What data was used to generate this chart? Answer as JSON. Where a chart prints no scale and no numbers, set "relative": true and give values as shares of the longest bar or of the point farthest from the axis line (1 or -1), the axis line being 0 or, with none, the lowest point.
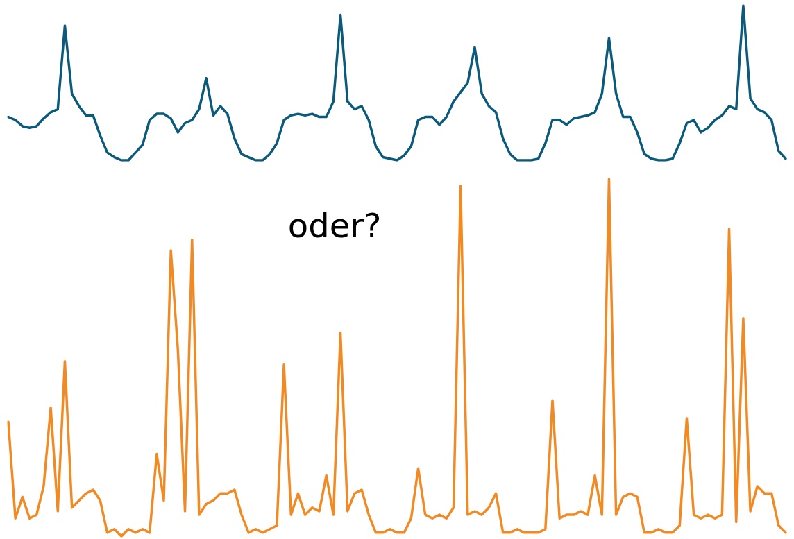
{
  "chart_data": [
    {
      "type": "line",
      "relative": true,
      "categories": [
        null,
        null,
        null,
        null,
        null,
        null,
        null,
        null,
        null,
        null,
        null,
        null,
        null,
        null,
        null,
        null,
        null,
        null,
        null,
        null,
        null,
        null,
        null,
        null,
        null,
        null,
        null,
        null,
        null,
        null,
        null,
        null,
        null,
        null,
        null,
        null,
        null,
        null,
        null,
        null,
        null,
        null,
        null,
        null,
        null,
        null,
        null,
        null,
        null,
        null,
        null,
        null,
        null,
        null,
        null,
        null,
        null,
        null,
        null,
        null,
        null,
        null,
        null,
        null,
        null,
        null,
        null,
        null,
        null,
        null,
        null,
        null,
        null,
        null,
        null,
        null,
        null,
        null,
        null,
        null,
        null,
        null,
        null,
        null,
        null,
        null,
        null,
        null,
        null,
        null,
        null,
        null,
        null,
        null,
        null,
        null,
        null,
        null,
        null,
        null,
        null,
        null,
        null,
        null,
        null,
        null,
        null,
        null,
        null,
        null,
        null
      ],
      "color": "#0b5a7c",
      "values": [
        0.28,
        0.26,
        0.22,
        0.21,
        0.22,
        0.27,
        0.31,
        0.33,
        0.87,
        0.43,
        0.35,
        0.29,
        0.29,
        0.16,
        0.05,
        0.02,
        0,
        0,
        0.05,
        0.1,
        0.26,
        0.3,
        0.3,
        0.27,
        0.18,
        0.24,
        0.26,
        0.33,
        0.53,
        0.29,
        0.35,
        0.3,
        0.14,
        0.04,
        0.02,
        0,
        0,
        0.04,
        0.11,
        0.26,
        0.29,
        0.3,
        0.29,
        0.3,
        0.28,
        0.28,
        0.38,
        0.94,
        0.38,
        0.33,
        0.35,
        0.26,
        0.09,
        0.02,
        0.01,
        0,
        0.03,
        0.09,
        0.26,
        0.28,
        0.28,
        0.23,
        0.28,
        0.38,
        0.44,
        0.5,
        0.73,
        0.43,
        0.35,
        0.31,
        0.14,
        0.04,
        0,
        0,
        0,
        0.01,
        0.11,
        0.26,
        0.26,
        0.23,
        0.27,
        0.28,
        0.29,
        0.31,
        0.43,
        0.79,
        0.43,
        0.28,
        0.28,
        0.18,
        0.04,
        0.01,
        0,
        0,
        0.01,
        0.11,
        0.24,
        0.26,
        0.18,
        0.21,
        0.26,
        0.29,
        0.35,
        0.33,
        1,
        0.4,
        0.33,
        0.31,
        0.26,
        0.06,
        0.01
      ]
    },
    {
      "type": "line",
      "relative": true,
      "categories": [
        null,
        null,
        null,
        null,
        null,
        null,
        null,
        null,
        null,
        null,
        null,
        null,
        null,
        null,
        null,
        null,
        null,
        null,
        null,
        null,
        null,
        null,
        null,
        null,
        null,
        null,
        null,
        null,
        null,
        null,
        null,
        null,
        null,
        null,
        null,
        null,
        null,
        null,
        null,
        null,
        null,
        null,
        null,
        null,
        null,
        null,
        null,
        null,
        null,
        null,
        null,
        null,
        null,
        null,
        null,
        null,
        null,
        null,
        null,
        null,
        null,
        null,
        null,
        null,
        null,
        null,
        null,
        null,
        null,
        null,
        null,
        null,
        null,
        null,
        null,
        null,
        null,
        null,
        null,
        null,
        null,
        null,
        null,
        null,
        null,
        null,
        null,
        null,
        null,
        null,
        null,
        null,
        null,
        null,
        null,
        null,
        null,
        null,
        null,
        null,
        null,
        null,
        null,
        null,
        null,
        null,
        null,
        null,
        null,
        null,
        null
      ],
      "color": "#f28a24",
      "annotations": [
        "oder?"
      ],
      "values": [
        0.32,
        0.05,
        0.11,
        0.05,
        0.06,
        0.14,
        0.36,
        0.07,
        0.49,
        0.08,
        0.1,
        0.12,
        0.13,
        0.1,
        0.01,
        0.02,
        0,
        0.02,
        0.01,
        0.02,
        0.01,
        0.23,
        0.1,
        0.8,
        0.52,
        0.07,
        0.83,
        0.06,
        0.09,
        0.1,
        0.12,
        0.12,
        0.13,
        0.06,
        0.01,
        0.02,
        0.01,
        0.02,
        0.03,
        0.48,
        0.06,
        0.12,
        0.06,
        0.08,
        0.07,
        0.17,
        0.06,
        0.57,
        0.07,
        0.12,
        0.13,
        0.06,
        0.01,
        0.01,
        0.02,
        0.01,
        0.01,
        0.05,
        0.19,
        0.06,
        0.05,
        0.06,
        0.05,
        0.08,
        0.98,
        0.06,
        0.07,
        0.06,
        0.08,
        0.12,
        0.01,
        0.01,
        0.02,
        0.01,
        0.01,
        0.01,
        0.02,
        0.38,
        0.05,
        0.06,
        0.06,
        0.07,
        0.06,
        0.17,
        0.06,
        1,
        0.06,
        0.11,
        0.12,
        0.11,
        0.01,
        0.01,
        0.02,
        0.01,
        0.01,
        0.03,
        0.33,
        0.06,
        0.05,
        0.06,
        0.05,
        0.06,
        0.86,
        0.04,
        0.61,
        0.07,
        0.14,
        0.12,
        0.12,
        0.03,
        0.01
      ]
    }
  ]
}
